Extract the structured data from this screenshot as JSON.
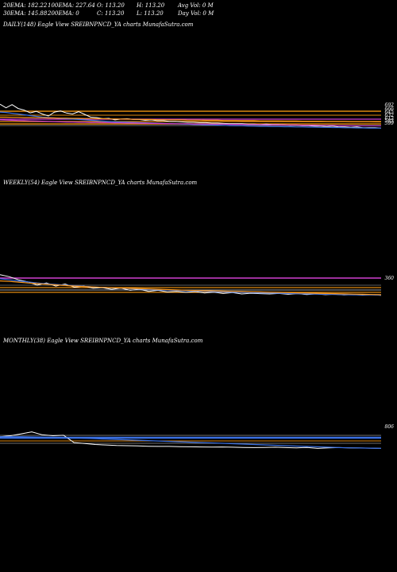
{
  "stats": {
    "row1": [
      "20EMA: 182.22",
      "100EMA: 227.64",
      "O: 113.20",
      "H: 113.20",
      "Avg Vol: 0  M"
    ],
    "row2": [
      "30EMA: 145.88",
      "200EMA: 0",
      "C: 113.20",
      "L: 113.20",
      "Day Vol: 0  M"
    ]
  },
  "panels": {
    "daily": {
      "title": "DAILY(148) Eagle   View  SREIBNPNCD_YA charts MunafaSutra.com"
    },
    "weekly": {
      "title": "WEEKLY(54) Eagle   View  SREIBNPNCD_YA charts MunafaSutra.com"
    },
    "monthly": {
      "title": "MONTHLY(38) Eagle   View  SREIBNPNCD_YA charts MunafaSutra.com"
    }
  },
  "colors": {
    "price": "#ffffff",
    "ema_blue": "#3a6fe0",
    "ema_orange": "#ff9a1a",
    "ema_magenta": "#d040d0",
    "ema_grey": "#bbbbbb",
    "level_orange": "#e08a10",
    "level_white": "#dddddd"
  },
  "chart_data": [
    {
      "type": "line",
      "title": "DAILY(148) Eagle   View  SREIBNPNCD_YA charts MunafaSutra.com",
      "series": [
        {
          "values": [
            640,
            622,
            638,
            618,
            610,
            596,
            604,
            590,
            580,
            600,
            606,
            595,
            590,
            602,
            588,
            574,
            572,
            566,
            568,
            560,
            564,
            566,
            562,
            562,
            558,
            560,
            556,
            556,
            552,
            552,
            550,
            548,
            548,
            546,
            546,
            544,
            544,
            542,
            540,
            540,
            540,
            538,
            538,
            536,
            538,
            536,
            536,
            534,
            532,
            532,
            530,
            530,
            528,
            528,
            526,
            528,
            524,
            524,
            522,
            524,
            520,
            520,
            520,
            518
          ]
        },
        {
          "values": [
            600,
            598,
            594,
            590,
            586,
            582,
            578,
            574,
            572,
            570,
            568,
            566,
            564,
            562,
            560,
            558,
            556,
            554,
            552,
            550,
            549,
            548,
            547,
            546,
            545,
            544,
            543,
            542,
            541,
            540,
            539,
            538,
            537,
            536,
            535,
            534,
            533,
            532,
            531,
            530,
            530,
            529,
            528,
            527,
            527,
            526,
            526,
            525,
            525,
            524,
            524,
            523,
            523,
            522,
            522,
            521,
            521,
            520,
            520,
            519,
            519,
            518,
            518,
            518
          ]
        },
        {
          "values": [
            560,
            559,
            558,
            557,
            556,
            555,
            554,
            553,
            552,
            551,
            550,
            549,
            549,
            548,
            548,
            547,
            547,
            546,
            546,
            545,
            545,
            544,
            544,
            543,
            543,
            542,
            542,
            541,
            541,
            540,
            540,
            540,
            539,
            539,
            539,
            538,
            538,
            538,
            537,
            537,
            537,
            536,
            536,
            536,
            535,
            535,
            535,
            534,
            534,
            534,
            533,
            533,
            533,
            532,
            532,
            532,
            531,
            531,
            531,
            530,
            530,
            530,
            530,
            530
          ]
        },
        {
          "values": [
            574,
            574,
            573,
            573,
            572,
            572,
            571,
            571,
            570,
            570,
            569,
            569,
            568,
            568,
            567,
            567,
            566,
            566,
            565,
            565,
            564,
            564,
            563,
            563,
            562,
            562,
            561,
            561,
            560,
            560,
            560,
            559,
            559,
            559,
            558,
            558,
            558,
            557,
            557,
            557,
            556,
            556,
            556,
            555,
            555,
            555,
            555,
            554,
            554,
            554,
            553,
            553,
            553,
            553,
            552,
            552,
            552,
            552,
            551,
            551,
            551,
            551,
            550,
            550
          ]
        }
      ],
      "price_labels": [
        "692",
        "666",
        "645",
        "632",
        "612",
        "583",
        "599"
      ]
    },
    {
      "type": "line",
      "title": "WEEKLY(54) Eagle   View  SREIBNPNCD_YA charts MunafaSutra.com",
      "series": [
        {
          "values": [
            580,
            560,
            530,
            510,
            480,
            500,
            470,
            490,
            460,
            470,
            450,
            455,
            440,
            450,
            430,
            440,
            420,
            430,
            415,
            420,
            410,
            418,
            405,
            412,
            400,
            408,
            395,
            402,
            398,
            395,
            400,
            392,
            398,
            390,
            395,
            388,
            392,
            386,
            390,
            384,
            388,
            382
          ]
        },
        {
          "values": [
            540,
            530,
            520,
            510,
            500,
            492,
            486,
            480,
            474,
            468,
            462,
            458,
            454,
            450,
            446,
            442,
            438,
            435,
            432,
            429,
            426,
            423,
            420,
            417,
            414,
            412,
            410,
            408,
            406,
            404,
            402,
            400,
            398,
            396,
            394,
            392,
            390,
            388,
            387,
            386,
            385,
            384
          ]
        },
        {
          "values": [
            520,
            515,
            508,
            500,
            494,
            488,
            482,
            476,
            470,
            466,
            462,
            458,
            455,
            452,
            449,
            446,
            443,
            440,
            437,
            434,
            431,
            428,
            426,
            424,
            422,
            420,
            418,
            416,
            414,
            412,
            410,
            408,
            406,
            404,
            402,
            400,
            398,
            396,
            394,
            392,
            390,
            388
          ]
        }
      ],
      "price_labels": [
        "360"
      ]
    },
    {
      "type": "line",
      "title": "MONTHLY(38) Eagle   View  SREIBNPNCD_YA charts MunafaSutra.com",
      "series": [
        {
          "values": [
            760,
            770,
            790,
            810,
            780,
            770,
            775,
            700,
            690,
            680,
            675,
            670,
            668,
            665,
            662,
            660,
            660,
            658,
            656,
            655,
            654,
            655,
            652,
            650,
            648,
            650,
            652,
            648,
            646,
            650,
            640,
            645,
            648,
            646,
            644,
            642,
            640
          ]
        },
        {
          "values": [
            760,
            760,
            760,
            758,
            756,
            754,
            752,
            748,
            744,
            740,
            736,
            732,
            728,
            724,
            720,
            716,
            712,
            708,
            704,
            700,
            696,
            692,
            688,
            684,
            680,
            676,
            672,
            668,
            664,
            660,
            656,
            652,
            648,
            646,
            644,
            642,
            640
          ]
        }
      ],
      "price_labels": [
        "806"
      ]
    }
  ]
}
